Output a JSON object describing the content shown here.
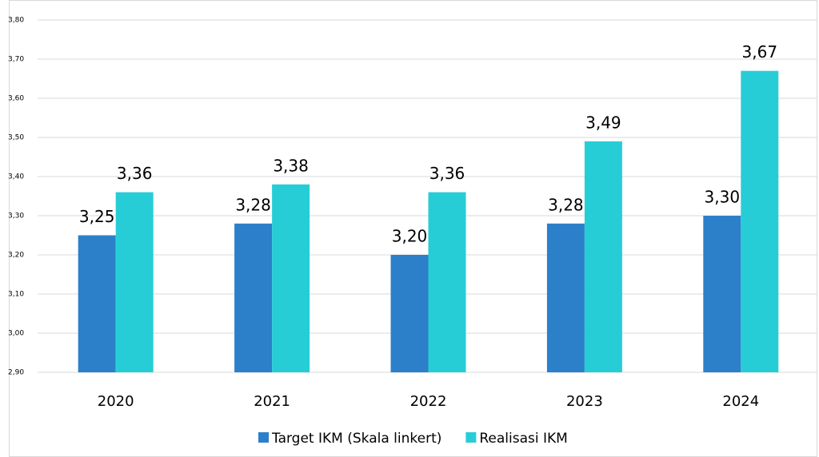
{
  "chart_data": {
    "type": "bar",
    "categories": [
      "2020",
      "2021",
      "2022",
      "2023",
      "2024"
    ],
    "series": [
      {
        "name": "Target IKM (Skala linkert)",
        "color": "#2b80c9",
        "values": [
          3.25,
          3.28,
          3.2,
          3.28,
          3.3
        ],
        "value_labels": [
          "3,25",
          "3,28",
          "3,20",
          "3,28",
          "3,30"
        ]
      },
      {
        "name": "Realisasi IKM",
        "color": "#27cdd6",
        "values": [
          3.36,
          3.38,
          3.36,
          3.49,
          3.67
        ],
        "value_labels": [
          "3,36",
          "3,38",
          "3,36",
          "3,49",
          "3,67"
        ]
      }
    ],
    "ylim": [
      2.9,
      3.8
    ],
    "yticks": [
      {
        "value": 2.9,
        "label": "2,90"
      },
      {
        "value": 3.0,
        "label": "3,00"
      },
      {
        "value": 3.1,
        "label": "3,10"
      },
      {
        "value": 3.2,
        "label": "3,20"
      },
      {
        "value": 3.3,
        "label": "3,30"
      },
      {
        "value": 3.4,
        "label": "3,40"
      },
      {
        "value": 3.5,
        "label": "3,50"
      },
      {
        "value": 3.6,
        "label": "3,60"
      },
      {
        "value": 3.7,
        "label": "3,70"
      },
      {
        "value": 3.8,
        "label": "3,80"
      }
    ],
    "grid": true,
    "legend": "bottom"
  }
}
